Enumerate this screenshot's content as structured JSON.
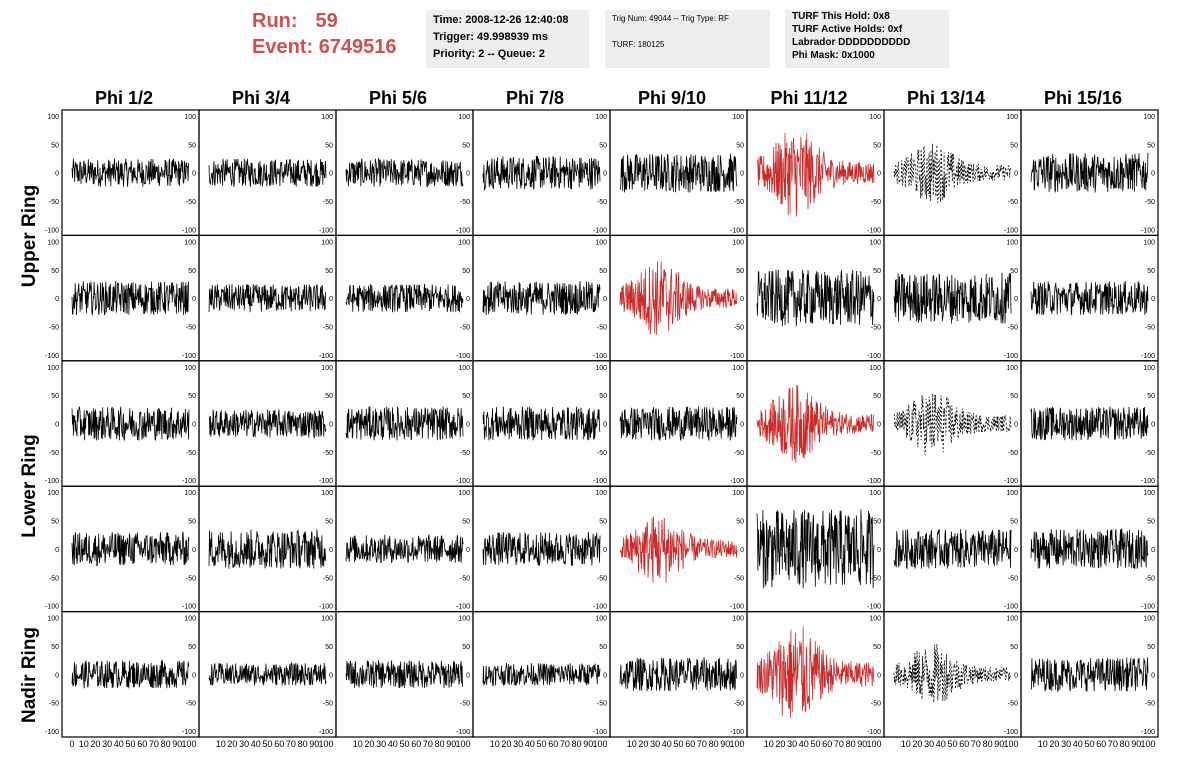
{
  "header": {
    "run_label": "Run:",
    "run_value": "59",
    "event_label": "Event:",
    "event_value": "6749516",
    "highlight_color": "#d0504e",
    "time_box": {
      "time": "Time: 2008-12-26 12:40:08",
      "trigger": "Trigger: 49.998939 ms",
      "priority": "Priority: 2 -- Queue: 2"
    },
    "trig_box": {
      "trig": "Trig Num: 49044 -- Trig Type: RF",
      "turf": "TURF: 180125"
    },
    "turf_box": {
      "this_hold": "TURF This Hold: 0x8",
      "active_holds": "TURF Active Holds: 0xf",
      "labrador": "Labrador DDDDDDDDDD",
      "phi_mask": "Phi Mask: 0x1000"
    }
  },
  "columns": [
    "Phi 1/2",
    "Phi 3/4",
    "Phi 5/6",
    "Phi 7/8",
    "Phi 9/10",
    "Phi 11/12",
    "Phi 13/14",
    "Phi 15/16"
  ],
  "rings": [
    "Upper Ring",
    "Lower Ring",
    "Nadir Ring"
  ],
  "chart_data": {
    "type": "line",
    "description_rows": 5,
    "ylim": [
      -100,
      100
    ],
    "xlim": [
      0,
      100
    ],
    "y_ticks": [
      "100",
      "50",
      "0",
      "-50",
      "-100"
    ],
    "x_ticks": [
      "0",
      "10",
      "20",
      "30",
      "40",
      "50",
      "60",
      "70",
      "80",
      "90",
      "100"
    ],
    "colors": {
      "normal": "#000000",
      "triggered": "#cc2a2a"
    },
    "panel_styles": [
      [
        "n",
        "n",
        "n",
        "n",
        "n",
        "r",
        "d",
        "n"
      ],
      [
        "n",
        "n",
        "n",
        "n",
        "r",
        "n",
        "n",
        "n"
      ],
      [
        "n",
        "n",
        "n",
        "n",
        "n",
        "r",
        "d",
        "n"
      ],
      [
        "n",
        "n",
        "n",
        "n",
        "r",
        "n",
        "n",
        "n"
      ],
      [
        "n",
        "n",
        "n",
        "n",
        "n",
        "r",
        "d",
        "n"
      ]
    ],
    "panel_amplitudes": [
      [
        25,
        25,
        25,
        30,
        35,
        80,
        55,
        35
      ],
      [
        30,
        25,
        25,
        30,
        70,
        50,
        45,
        30
      ],
      [
        30,
        25,
        30,
        30,
        30,
        70,
        60,
        30
      ],
      [
        30,
        35,
        25,
        30,
        65,
        70,
        35,
        35
      ],
      [
        25,
        20,
        25,
        20,
        30,
        90,
        55,
        30
      ]
    ]
  }
}
